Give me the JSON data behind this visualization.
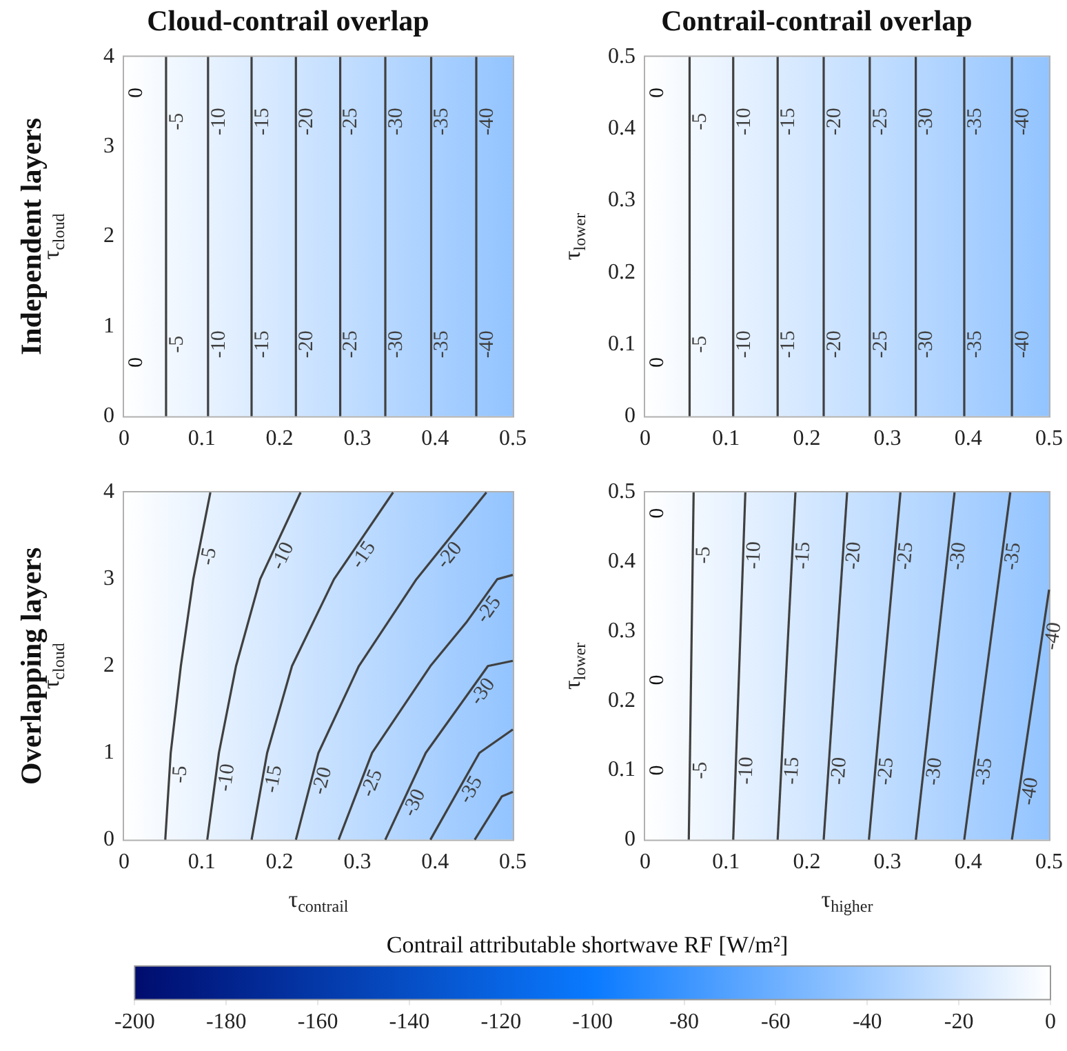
{
  "chart_data": [
    {
      "type": "line",
      "title": "Cloud-contrail overlap",
      "ylabel": "τ$_{cloud}$",
      "annotations": [
        "Independent layers",
        "0",
        "0"
      ],
      "marker": "none",
      "xlim": [
        0,
        0.5
      ],
      "ylim": [
        0,
        4
      ],
      "xticks": [
        0,
        0.1,
        0.2,
        0.3,
        0.4,
        0.5
      ],
      "yticks": [
        0,
        1,
        2,
        3,
        4
      ],
      "series": [
        {
          "name": "-5",
          "color": "#404040",
          "x": [
            0.054,
            0.054
          ],
          "values": [
            0,
            4
          ]
        },
        {
          "name": "-10",
          "color": "#404040",
          "x": [
            0.108,
            0.108
          ],
          "values": [
            0,
            4
          ]
        },
        {
          "name": "-15",
          "color": "#404040",
          "x": [
            0.164,
            0.164
          ],
          "values": [
            0,
            4
          ]
        },
        {
          "name": "-20",
          "color": "#404040",
          "x": [
            0.221,
            0.221
          ],
          "values": [
            0,
            4
          ]
        },
        {
          "name": "-25",
          "color": "#404040",
          "x": [
            0.278,
            0.278
          ],
          "values": [
            0,
            4
          ]
        },
        {
          "name": "-30",
          "color": "#404040",
          "x": [
            0.336,
            0.336
          ],
          "values": [
            0,
            4
          ]
        },
        {
          "name": "-35",
          "color": "#404040",
          "x": [
            0.395,
            0.395
          ],
          "values": [
            0,
            4
          ]
        },
        {
          "name": "-40",
          "color": "#404040",
          "x": [
            0.453,
            0.453
          ],
          "values": [
            0,
            4
          ]
        }
      ]
    },
    {
      "type": "line",
      "title": "Contrail-contrail overlap",
      "ylabel": "τ$_{lower}$",
      "annotations": [
        "0",
        "0"
      ],
      "marker": "none",
      "xlim": [
        0,
        0.5
      ],
      "ylim": [
        0,
        0.5
      ],
      "xticks": [
        0,
        0.1,
        0.2,
        0.3,
        0.4,
        0.5
      ],
      "yticks": [
        0,
        0.1,
        0.2,
        0.3,
        0.4,
        0.5
      ],
      "series": [
        {
          "name": "-5",
          "color": "#404040",
          "x": [
            0.055,
            0.055
          ],
          "values": [
            0,
            0.5
          ]
        },
        {
          "name": "-10",
          "color": "#404040",
          "x": [
            0.109,
            0.109
          ],
          "values": [
            0,
            0.5
          ]
        },
        {
          "name": "-15",
          "color": "#404040",
          "x": [
            0.164,
            0.164
          ],
          "values": [
            0,
            0.5
          ]
        },
        {
          "name": "-20",
          "color": "#404040",
          "x": [
            0.221,
            0.221
          ],
          "values": [
            0,
            0.5
          ]
        },
        {
          "name": "-25",
          "color": "#404040",
          "x": [
            0.278,
            0.278
          ],
          "values": [
            0,
            0.5
          ]
        },
        {
          "name": "-30",
          "color": "#404040",
          "x": [
            0.335,
            0.335
          ],
          "values": [
            0,
            0.5
          ]
        },
        {
          "name": "-35",
          "color": "#404040",
          "x": [
            0.395,
            0.395
          ],
          "values": [
            0,
            0.5
          ]
        },
        {
          "name": "-40",
          "color": "#404040",
          "x": [
            0.454,
            0.454
          ],
          "values": [
            0,
            0.5
          ]
        }
      ]
    },
    {
      "type": "line",
      "xlabel": "τ$_{contrail}$",
      "ylabel": "τ$_{cloud}$",
      "annotations": [
        "Overlapping layers"
      ],
      "marker": "none",
      "xlim": [
        0,
        0.5
      ],
      "ylim": [
        0,
        4
      ],
      "xticks": [
        0,
        0.1,
        0.2,
        0.3,
        0.4,
        0.5
      ],
      "yticks": [
        0,
        1,
        2,
        3,
        4
      ],
      "series": [
        {
          "name": "-5",
          "color": "#404040",
          "x": [
            0.053,
            0.06,
            0.073,
            0.089,
            0.111
          ],
          "values": [
            0,
            1,
            2,
            3,
            4
          ]
        },
        {
          "name": "-10",
          "color": "#404040",
          "x": [
            0.107,
            0.122,
            0.144,
            0.175,
            0.227
          ],
          "values": [
            0,
            1,
            2,
            3,
            4
          ]
        },
        {
          "name": "-15",
          "color": "#404040",
          "x": [
            0.164,
            0.184,
            0.216,
            0.27,
            0.346
          ],
          "values": [
            0,
            1,
            2,
            3,
            4
          ]
        },
        {
          "name": "-20",
          "color": "#404040",
          "x": [
            0.221,
            0.25,
            0.302,
            0.376,
            0.466
          ],
          "values": [
            0,
            1,
            2,
            3,
            4
          ]
        },
        {
          "name": "-25",
          "color": "#404040",
          "x": [
            0.276,
            0.319,
            0.394,
            0.44,
            0.48,
            0.5
          ],
          "values": [
            0,
            1,
            2,
            2.5,
            3,
            3.05
          ]
        },
        {
          "name": "-30",
          "color": "#404040",
          "x": [
            0.336,
            0.388,
            0.428,
            0.468,
            0.5
          ],
          "values": [
            0,
            1,
            1.5,
            2,
            2.06
          ]
        },
        {
          "name": "-35",
          "color": "#404040",
          "x": [
            0.394,
            0.457,
            0.5
          ],
          "values": [
            0,
            1,
            1.27
          ]
        },
        {
          "color": "#404040",
          "x": [
            0.451,
            0.486,
            0.5
          ],
          "values": [
            0,
            0.5,
            0.55
          ]
        }
      ]
    },
    {
      "type": "line",
      "xlabel": "τ$_{higher}$",
      "ylabel": "τ$_{lower}$",
      "annotations": [
        "0",
        "0",
        "0"
      ],
      "marker": "none",
      "xlim": [
        0,
        0.5
      ],
      "ylim": [
        0,
        0.5
      ],
      "xticks": [
        0,
        0.1,
        0.2,
        0.3,
        0.4,
        0.5
      ],
      "yticks": [
        0,
        0.1,
        0.2,
        0.3,
        0.4,
        0.5
      ],
      "clabel": "Contrail attributable shortwave RF [W/m²]",
      "clim": [
        -200,
        0
      ],
      "cticks": [
        -200,
        -180,
        -160,
        -140,
        -120,
        -100,
        -80,
        -60,
        -40,
        -20,
        0
      ],
      "series": [
        {
          "name": "-5",
          "color": "#404040",
          "x": [
            0.054,
            0.06
          ],
          "values": [
            0,
            0.5
          ]
        },
        {
          "name": "-10",
          "color": "#404040",
          "x": [
            0.109,
            0.124
          ],
          "values": [
            0,
            0.5
          ]
        },
        {
          "name": "-15",
          "color": "#404040",
          "x": [
            0.164,
            0.186
          ],
          "values": [
            0,
            0.5
          ]
        },
        {
          "name": "-20",
          "color": "#404040",
          "x": [
            0.221,
            0.25
          ],
          "values": [
            0,
            0.5
          ]
        },
        {
          "name": "-25",
          "color": "#404040",
          "x": [
            0.277,
            0.316
          ],
          "values": [
            0,
            0.5
          ]
        },
        {
          "name": "-30",
          "color": "#404040",
          "x": [
            0.335,
            0.383
          ],
          "values": [
            0,
            0.5
          ]
        },
        {
          "name": "-35",
          "color": "#404040",
          "x": [
            0.395,
            0.452
          ],
          "values": [
            0,
            0.5
          ]
        },
        {
          "name": "-40",
          "color": "#404040",
          "x": [
            0.454,
            0.5
          ],
          "values": [
            0,
            0.36
          ]
        }
      ]
    }
  ]
}
